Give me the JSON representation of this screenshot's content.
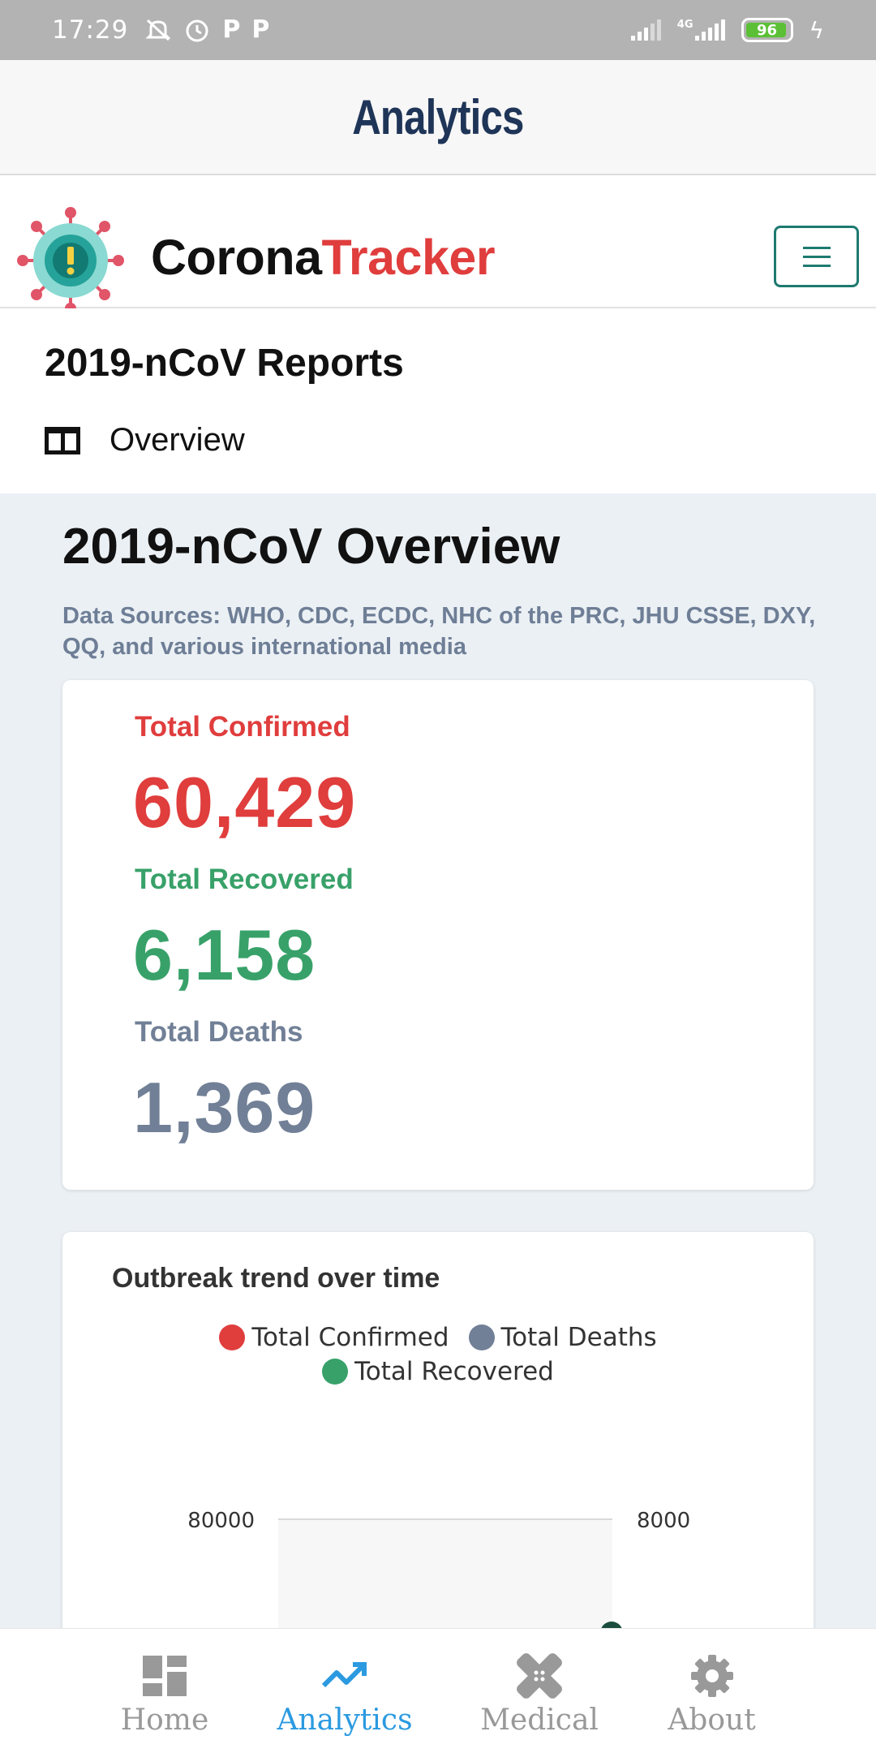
{
  "status_bar": {
    "time": "17:29",
    "network": "4G",
    "battery": "96",
    "icons": [
      "mute-icon",
      "alarm-icon",
      "parking-icon",
      "parking-icon",
      "signal-icon",
      "signal-4g-icon",
      "battery-icon",
      "charging-icon"
    ]
  },
  "header": {
    "title": "Analytics"
  },
  "navbar": {
    "brand_part1": "Corona",
    "brand_part2": "Tracker",
    "menu_icon": "hamburger-icon"
  },
  "reports": {
    "title": "2019-nCoV Reports",
    "overview_label": "Overview"
  },
  "overview": {
    "title": "2019-nCoV Overview",
    "sources": "Data Sources: WHO, CDC, ECDC, NHC of the PRC, JHU CSSE, DXY, QQ, and various international media"
  },
  "stats": {
    "confirmed_label": "Total Confirmed",
    "confirmed_value": "60,429",
    "recovered_label": "Total Recovered",
    "recovered_value": "6,158",
    "deaths_label": "Total Deaths",
    "deaths_value": "1,369"
  },
  "colors": {
    "confirmed": "#e03d3d",
    "recovered": "#38a169",
    "deaths": "#718096",
    "active_tab": "#2b9ae0",
    "brand_accent": "#e03d3d"
  },
  "chart_data": {
    "type": "line",
    "title": "Outbreak trend over time",
    "series": [
      {
        "name": "Total Confirmed",
        "values": []
      },
      {
        "name": "Total Deaths",
        "values": []
      },
      {
        "name": "Total Recovered",
        "values": []
      }
    ],
    "y_left_ticks": [
      "80000"
    ],
    "y_right_ticks": [
      "8000"
    ],
    "legend_position": "top"
  },
  "bottom_nav": {
    "items": [
      {
        "label": "Home",
        "icon": "dashboard-icon",
        "active": false
      },
      {
        "label": "Analytics",
        "icon": "trend-icon",
        "active": true
      },
      {
        "label": "Medical",
        "icon": "bandage-icon",
        "active": false
      },
      {
        "label": "About",
        "icon": "gear-icon",
        "active": false
      }
    ]
  }
}
